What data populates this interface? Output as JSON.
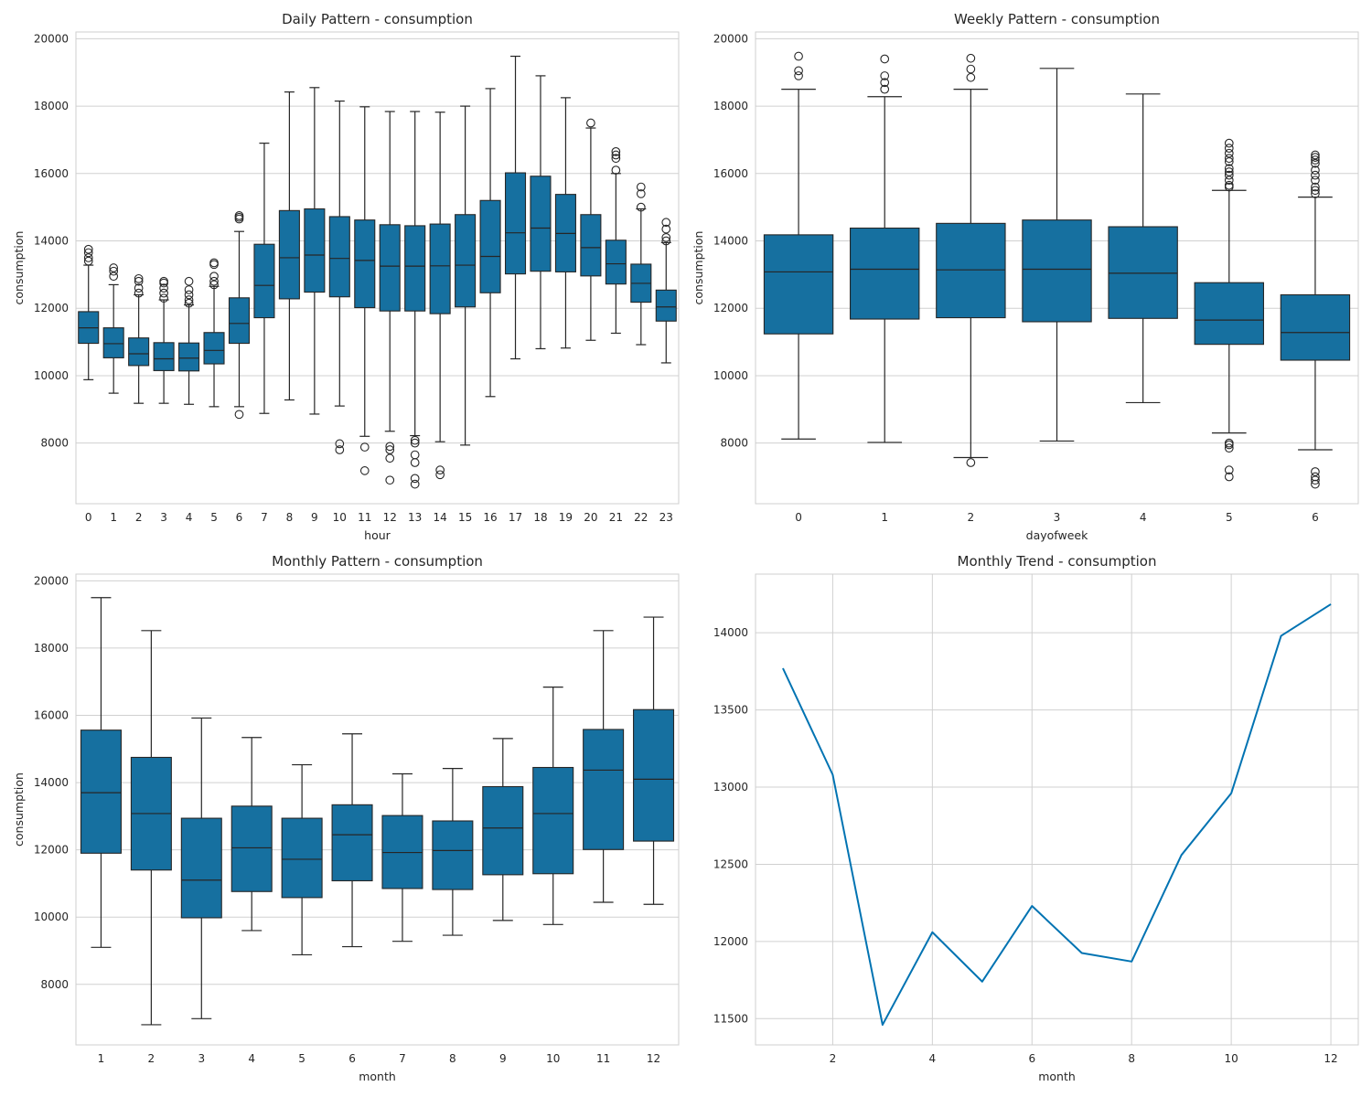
{
  "colors": {
    "box": "#1670a0",
    "line": "#0173b2",
    "edge": "#262626",
    "grid": "#d0d0d0"
  },
  "chart_data": [
    {
      "type": "box",
      "title": "Daily Pattern - consumption",
      "xlabel": "hour",
      "ylabel": "consumption",
      "ylim": [
        6200,
        20200
      ],
      "yticks": [
        8000,
        10000,
        12000,
        14000,
        16000,
        18000,
        20000
      ],
      "grid": "y",
      "categories": [
        "0",
        "1",
        "2",
        "3",
        "4",
        "5",
        "6",
        "7",
        "8",
        "9",
        "10",
        "11",
        "12",
        "13",
        "14",
        "15",
        "16",
        "17",
        "18",
        "19",
        "20",
        "21",
        "22",
        "23"
      ],
      "boxes": [
        {
          "min": 9880,
          "q1": 10960,
          "median": 11420,
          "q3": 11900,
          "max": 13280,
          "outliers": [
            13400,
            13500,
            13650,
            13750
          ]
        },
        {
          "min": 9480,
          "q1": 10530,
          "median": 10950,
          "q3": 11420,
          "max": 12700,
          "outliers": [
            12950,
            13100,
            13200
          ]
        },
        {
          "min": 9180,
          "q1": 10300,
          "median": 10650,
          "q3": 11120,
          "max": 12400,
          "outliers": [
            12450,
            12600,
            12800,
            12880
          ]
        },
        {
          "min": 9180,
          "q1": 10150,
          "median": 10500,
          "q3": 10980,
          "max": 12250,
          "outliers": [
            12300,
            12450,
            12600,
            12750,
            12800
          ]
        },
        {
          "min": 9150,
          "q1": 10140,
          "median": 10520,
          "q3": 10970,
          "max": 12100,
          "outliers": [
            12150,
            12250,
            12400,
            12550,
            12800
          ]
        },
        {
          "min": 9080,
          "q1": 10350,
          "median": 10750,
          "q3": 11280,
          "max": 12650,
          "outliers": [
            12700,
            12800,
            12950,
            13300,
            13350
          ]
        },
        {
          "min": 9080,
          "q1": 10960,
          "median": 11550,
          "q3": 12310,
          "max": 14280,
          "outliers": [
            8850,
            14650,
            14700,
            14750
          ]
        },
        {
          "min": 8880,
          "q1": 11720,
          "median": 12680,
          "q3": 13900,
          "max": 16900,
          "outliers": []
        },
        {
          "min": 9280,
          "q1": 12280,
          "median": 13500,
          "q3": 14900,
          "max": 18420,
          "outliers": []
        },
        {
          "min": 8860,
          "q1": 12480,
          "median": 13580,
          "q3": 14950,
          "max": 18550,
          "outliers": []
        },
        {
          "min": 9100,
          "q1": 12340,
          "median": 13480,
          "q3": 14720,
          "max": 18150,
          "outliers": [
            7800,
            7980
          ]
        },
        {
          "min": 8200,
          "q1": 12020,
          "median": 13420,
          "q3": 14620,
          "max": 17980,
          "outliers": [
            7180,
            7880
          ]
        },
        {
          "min": 8350,
          "q1": 11920,
          "median": 13250,
          "q3": 14480,
          "max": 17840,
          "outliers": [
            6900,
            7550,
            7800,
            7900
          ]
        },
        {
          "min": 8220,
          "q1": 11920,
          "median": 13250,
          "q3": 14450,
          "max": 17840,
          "outliers": [
            6780,
            6950,
            7420,
            7650,
            8000,
            8080
          ]
        },
        {
          "min": 8040,
          "q1": 11840,
          "median": 13260,
          "q3": 14500,
          "max": 17820,
          "outliers": [
            7060,
            7200
          ]
        },
        {
          "min": 7940,
          "q1": 12040,
          "median": 13280,
          "q3": 14780,
          "max": 18000,
          "outliers": []
        },
        {
          "min": 9380,
          "q1": 12460,
          "median": 13540,
          "q3": 15200,
          "max": 18520,
          "outliers": []
        },
        {
          "min": 10500,
          "q1": 13020,
          "median": 14240,
          "q3": 16020,
          "max": 19480,
          "outliers": []
        },
        {
          "min": 10800,
          "q1": 13100,
          "median": 14380,
          "q3": 15920,
          "max": 18900,
          "outliers": []
        },
        {
          "min": 10820,
          "q1": 13080,
          "median": 14220,
          "q3": 15380,
          "max": 18250,
          "outliers": []
        },
        {
          "min": 11050,
          "q1": 12960,
          "median": 13800,
          "q3": 14780,
          "max": 17350,
          "outliers": [
            17500
          ]
        },
        {
          "min": 11260,
          "q1": 12720,
          "median": 13320,
          "q3": 14020,
          "max": 16000,
          "outliers": [
            16100,
            16450,
            16550,
            16650
          ]
        },
        {
          "min": 10920,
          "q1": 12180,
          "median": 12740,
          "q3": 13310,
          "max": 14950,
          "outliers": [
            15000,
            15400,
            15600
          ]
        },
        {
          "min": 10380,
          "q1": 11620,
          "median": 12040,
          "q3": 12540,
          "max": 13950,
          "outliers": [
            14000,
            14100,
            14350,
            14550
          ]
        }
      ]
    },
    {
      "type": "box",
      "title": "Weekly Pattern - consumption",
      "xlabel": "dayofweek",
      "ylabel": "consumption",
      "ylim": [
        6200,
        20200
      ],
      "yticks": [
        8000,
        10000,
        12000,
        14000,
        16000,
        18000,
        20000
      ],
      "grid": "y",
      "categories": [
        "0",
        "1",
        "2",
        "3",
        "4",
        "5",
        "6"
      ],
      "boxes": [
        {
          "min": 8120,
          "q1": 11240,
          "median": 13080,
          "q3": 14180,
          "max": 18500,
          "outliers": [
            18900,
            19050,
            19480
          ]
        },
        {
          "min": 8020,
          "q1": 11680,
          "median": 13160,
          "q3": 14380,
          "max": 18280,
          "outliers": [
            18500,
            18700,
            18900,
            19400
          ]
        },
        {
          "min": 7570,
          "q1": 11720,
          "median": 13140,
          "q3": 14520,
          "max": 18500,
          "outliers": [
            7420,
            18850,
            19100,
            19420
          ]
        },
        {
          "min": 8060,
          "q1": 11600,
          "median": 13160,
          "q3": 14620,
          "max": 19120,
          "outliers": []
        },
        {
          "min": 9200,
          "q1": 11700,
          "median": 13040,
          "q3": 14420,
          "max": 18360,
          "outliers": []
        },
        {
          "min": 8300,
          "q1": 10930,
          "median": 11650,
          "q3": 12760,
          "max": 15500,
          "outliers": [
            7000,
            7200,
            7850,
            7950,
            8000,
            15600,
            15650,
            15800,
            15950,
            16050,
            16150,
            16350,
            16450,
            16600,
            16750,
            16900
          ]
        },
        {
          "min": 7800,
          "q1": 10460,
          "median": 11280,
          "q3": 12400,
          "max": 15300,
          "outliers": [
            6780,
            6900,
            7000,
            7150,
            15400,
            15500,
            15600,
            15800,
            15950,
            16100,
            16300,
            16400,
            16480,
            16550
          ]
        }
      ]
    },
    {
      "type": "box",
      "title": "Monthly Pattern - consumption",
      "xlabel": "month",
      "ylabel": "consumption",
      "ylim": [
        6200,
        20200
      ],
      "yticks": [
        8000,
        10000,
        12000,
        14000,
        16000,
        18000,
        20000
      ],
      "grid": "y",
      "categories": [
        "1",
        "2",
        "3",
        "4",
        "5",
        "6",
        "7",
        "8",
        "9",
        "10",
        "11",
        "12"
      ],
      "boxes": [
        {
          "min": 9100,
          "q1": 11900,
          "median": 13700,
          "q3": 15560,
          "max": 19500,
          "outliers": []
        },
        {
          "min": 6800,
          "q1": 11400,
          "median": 13080,
          "q3": 14750,
          "max": 18520,
          "outliers": []
        },
        {
          "min": 6980,
          "q1": 9980,
          "median": 11100,
          "q3": 12940,
          "max": 15920,
          "outliers": []
        },
        {
          "min": 9600,
          "q1": 10760,
          "median": 12060,
          "q3": 13300,
          "max": 15340,
          "outliers": []
        },
        {
          "min": 8880,
          "q1": 10580,
          "median": 11720,
          "q3": 12940,
          "max": 14530,
          "outliers": []
        },
        {
          "min": 9120,
          "q1": 11080,
          "median": 12450,
          "q3": 13340,
          "max": 15450,
          "outliers": []
        },
        {
          "min": 9280,
          "q1": 10850,
          "median": 11920,
          "q3": 13020,
          "max": 14260,
          "outliers": []
        },
        {
          "min": 9460,
          "q1": 10820,
          "median": 11980,
          "q3": 12860,
          "max": 14420,
          "outliers": []
        },
        {
          "min": 9900,
          "q1": 11260,
          "median": 12650,
          "q3": 13880,
          "max": 15310,
          "outliers": []
        },
        {
          "min": 9780,
          "q1": 11290,
          "median": 13080,
          "q3": 14450,
          "max": 16840,
          "outliers": []
        },
        {
          "min": 10440,
          "q1": 12010,
          "median": 14370,
          "q3": 15580,
          "max": 18520,
          "outliers": []
        },
        {
          "min": 10380,
          "q1": 12260,
          "median": 14100,
          "q3": 16170,
          "max": 18920,
          "outliers": []
        }
      ]
    },
    {
      "type": "line",
      "title": "Monthly Trend - consumption",
      "xlabel": "month",
      "ylabel": "",
      "xlim": [
        0.45,
        12.55
      ],
      "ylim": [
        11330,
        14380
      ],
      "xticks": [
        2,
        4,
        6,
        8,
        10,
        12
      ],
      "yticks": [
        11500,
        12000,
        12500,
        13000,
        13500,
        14000
      ],
      "grid": "both",
      "x": [
        1,
        2,
        3,
        4,
        5,
        6,
        7,
        8,
        9,
        10,
        11,
        12
      ],
      "y": [
        13770,
        13080,
        11460,
        12060,
        11740,
        12230,
        11925,
        11870,
        12560,
        12960,
        13980,
        14185
      ]
    }
  ]
}
